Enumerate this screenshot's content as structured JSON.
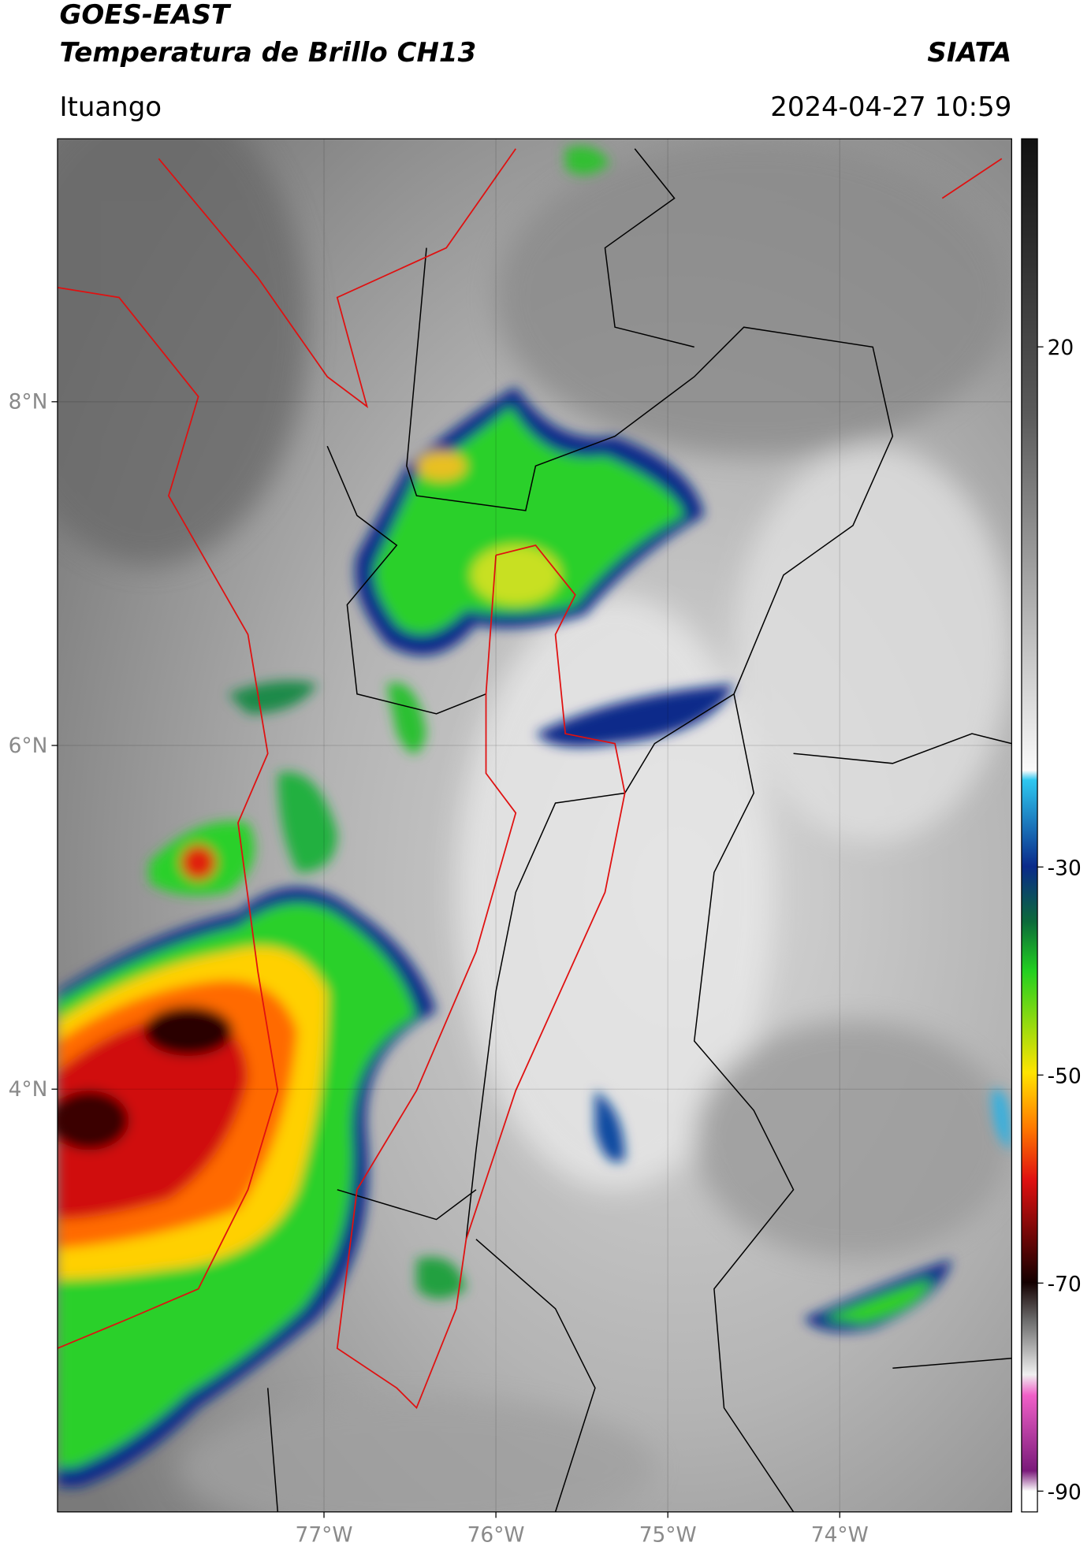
{
  "header": {
    "title": "GOES-EAST",
    "subtitle": "Temperatura de Brillo CH13",
    "source": "SIATA",
    "location": "Ituango",
    "datetime": "2024-04-27 10:59"
  },
  "map": {
    "type": "map",
    "xlim": [
      -78.55,
      -73
    ],
    "ylim": [
      1.54,
      9.53
    ],
    "xticks": [
      {
        "value": -77,
        "label": "77°W"
      },
      {
        "value": -76,
        "label": "76°W"
      },
      {
        "value": -75,
        "label": "75°W"
      },
      {
        "value": -74,
        "label": "74°W"
      }
    ],
    "yticks": [
      {
        "value": 8,
        "label": "8°N"
      },
      {
        "value": 6,
        "label": "6°N"
      },
      {
        "value": 4,
        "label": "4°N"
      }
    ],
    "grid": true
  },
  "colorbar": {
    "clim": [
      -92,
      40
    ],
    "ticks": [
      20,
      -30,
      -50,
      -70,
      -90
    ]
  }
}
